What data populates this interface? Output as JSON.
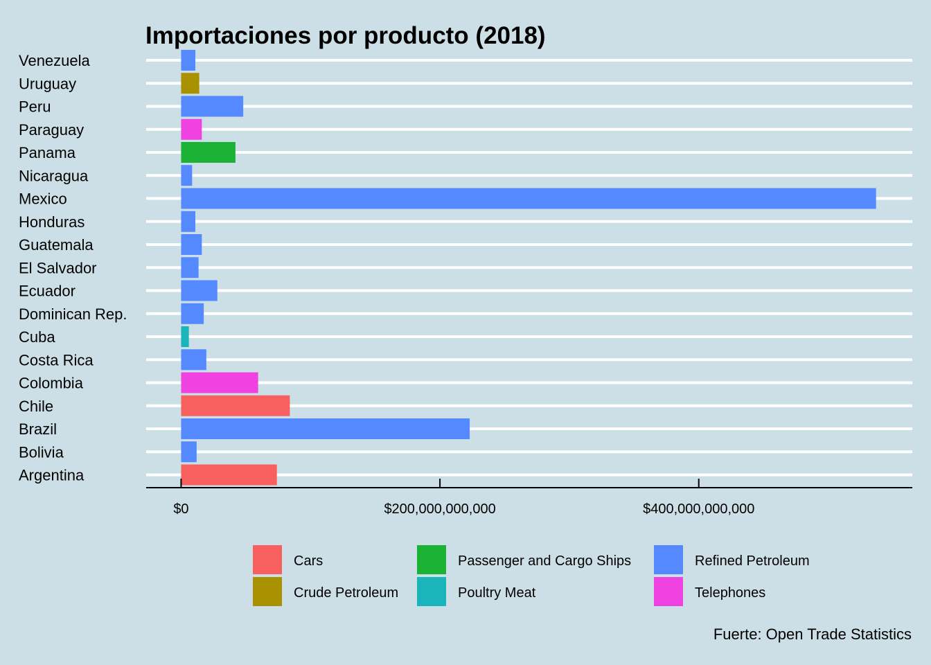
{
  "chart_data": {
    "type": "bar",
    "orientation": "horizontal",
    "title": "Importaciones por producto (2018)",
    "caption": "Fuerte: Open Trade Statistics",
    "xlabel": "",
    "ylabel": "",
    "xlim": [
      -27000000000,
      565000000000
    ],
    "x_ticks": [
      0,
      200000000000,
      400000000000
    ],
    "x_tick_labels": [
      "$0",
      "$200,000,000,000",
      "$400,000,000,000"
    ],
    "grid": "horizontal",
    "legend_position": "bottom",
    "categories": [
      "Venezuela",
      "Uruguay",
      "Peru",
      "Paraguay",
      "Panama",
      "Nicaragua",
      "Mexico",
      "Honduras",
      "Guatemala",
      "El Salvador",
      "Ecuador",
      "Dominican Rep.",
      "Cuba",
      "Costa Rica",
      "Colombia",
      "Chile",
      "Brazil",
      "Bolivia",
      "Argentina"
    ],
    "values": [
      11000000000,
      14000000000,
      48000000000,
      16000000000,
      42000000000,
      8500000000,
      537000000000,
      11000000000,
      16000000000,
      13500000000,
      28000000000,
      17500000000,
      6000000000,
      19500000000,
      59500000000,
      84000000000,
      223000000000,
      12000000000,
      74000000000
    ],
    "products": [
      "Refined Petroleum",
      "Crude Petroleum",
      "Refined Petroleum",
      "Telephones",
      "Passenger and Cargo Ships",
      "Refined Petroleum",
      "Refined Petroleum",
      "Refined Petroleum",
      "Refined Petroleum",
      "Refined Petroleum",
      "Refined Petroleum",
      "Refined Petroleum",
      "Poultry Meat",
      "Refined Petroleum",
      "Telephones",
      "Cars",
      "Refined Petroleum",
      "Refined Petroleum",
      "Cars"
    ],
    "legend": [
      {
        "name": "Cars",
        "color": "#f8605f"
      },
      {
        "name": "Crude Petroleum",
        "color": "#aa9100"
      },
      {
        "name": "Passenger and Cargo Ships",
        "color": "#1cb235"
      },
      {
        "name": "Poultry Meat",
        "color": "#1ab5bb"
      },
      {
        "name": "Refined Petroleum",
        "color": "#5589ff"
      },
      {
        "name": "Telephones",
        "color": "#f042e0"
      }
    ]
  },
  "colors": {
    "background": "#cddfe6",
    "gridline": "#ffffff",
    "axis": "#000000"
  }
}
